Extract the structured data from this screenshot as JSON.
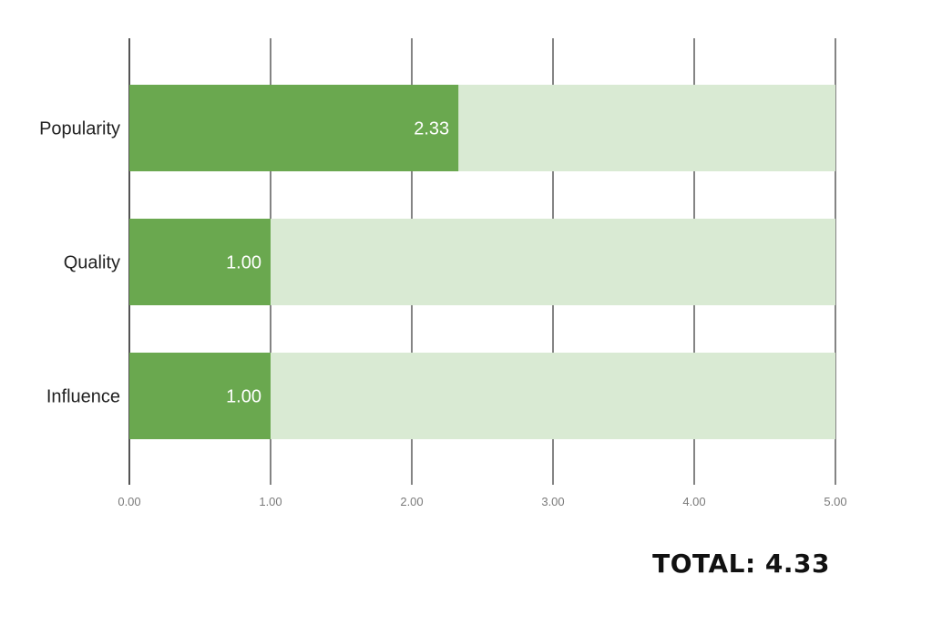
{
  "chart_data": {
    "type": "bar",
    "orientation": "horizontal",
    "categories": [
      "Popularity",
      "Quality",
      "Influence"
    ],
    "values": [
      2.33,
      1.0,
      1.0
    ],
    "value_labels": [
      "2.33",
      "1.00",
      "1.00"
    ],
    "xlim": [
      0,
      5
    ],
    "xticks": [
      "0.00",
      "1.00",
      "2.00",
      "3.00",
      "4.00",
      "5.00"
    ],
    "background_max": 5,
    "grid": true,
    "colors": {
      "bar": "#6aa84f",
      "track": "#d9ead3",
      "grid": "#333333",
      "value_text": "#ffffff"
    }
  },
  "total": {
    "label": "TOTAL:",
    "value": "4.33"
  }
}
